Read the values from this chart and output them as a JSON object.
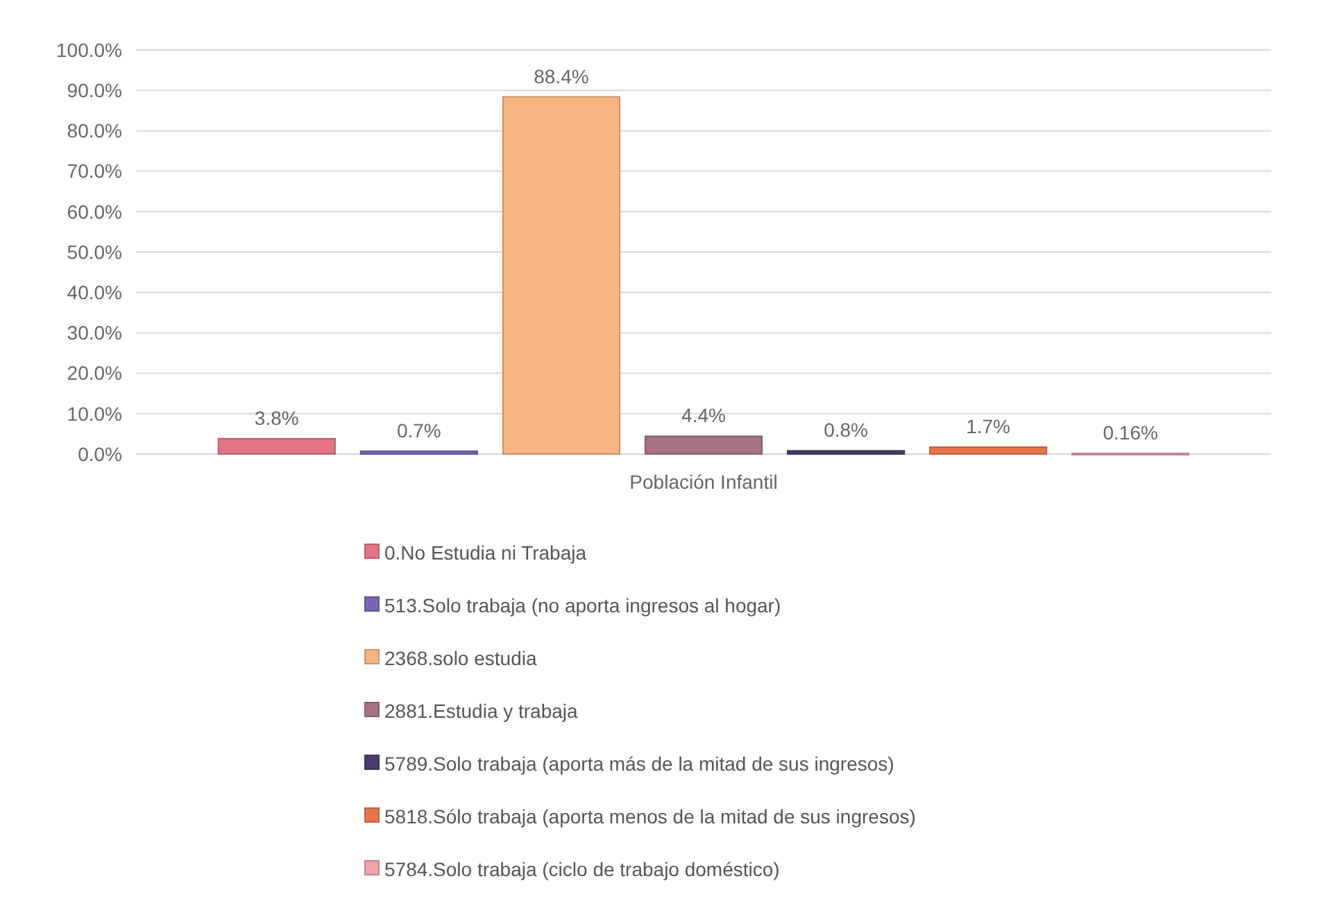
{
  "chart_data": {
    "type": "bar",
    "categories": [
      "Población Infantil"
    ],
    "series": [
      {
        "name": "0.No Estudia ni Trabaja",
        "color": "#e27585",
        "values": [
          3.8
        ],
        "value_labels": [
          "3.8%"
        ]
      },
      {
        "name": "513.Solo trabaja (no aporta ingresos al hogar)",
        "color": "#7b65b5",
        "values": [
          0.7
        ],
        "value_labels": [
          "0.7%"
        ]
      },
      {
        "name": "2368.solo estudia",
        "color": "#f8b583",
        "values": [
          88.4
        ],
        "value_labels": [
          "88.4%"
        ]
      },
      {
        "name": "2881.Estudia y trabaja",
        "color": "#a77282",
        "values": [
          4.4
        ],
        "value_labels": [
          "4.4%"
        ]
      },
      {
        "name": "5789.Solo trabaja (aporta más de la mitad de sus ingresos)",
        "color": "#4b3c6b",
        "values": [
          0.8
        ],
        "value_labels": [
          "0.8%"
        ]
      },
      {
        "name": "5818.Sólo trabaja (aporta menos de la mitad de sus ingresos)",
        "color": "#e8744e",
        "values": [
          1.7
        ],
        "value_labels": [
          "1.7%"
        ]
      },
      {
        "name": "5784.Solo trabaja (ciclo de trabajo doméstico)",
        "color": "#f2a3ab",
        "values": [
          0.16
        ],
        "value_labels": [
          "0.16%"
        ]
      }
    ],
    "ylim": [
      0,
      100
    ],
    "yticks": [
      {
        "value": 0,
        "label": "0.0%"
      },
      {
        "value": 10,
        "label": "10.0%"
      },
      {
        "value": 20,
        "label": "20.0%"
      },
      {
        "value": 30,
        "label": "30.0%"
      },
      {
        "value": 40,
        "label": "40.0%"
      },
      {
        "value": 50,
        "label": "50.0%"
      },
      {
        "value": 60,
        "label": "60.0%"
      },
      {
        "value": 70,
        "label": "70.0%"
      },
      {
        "value": 80,
        "label": "80.0%"
      },
      {
        "value": 90,
        "label": "90.0%"
      },
      {
        "value": 100,
        "label": "100.0%"
      }
    ],
    "grid": "y",
    "legend": "bottom"
  }
}
